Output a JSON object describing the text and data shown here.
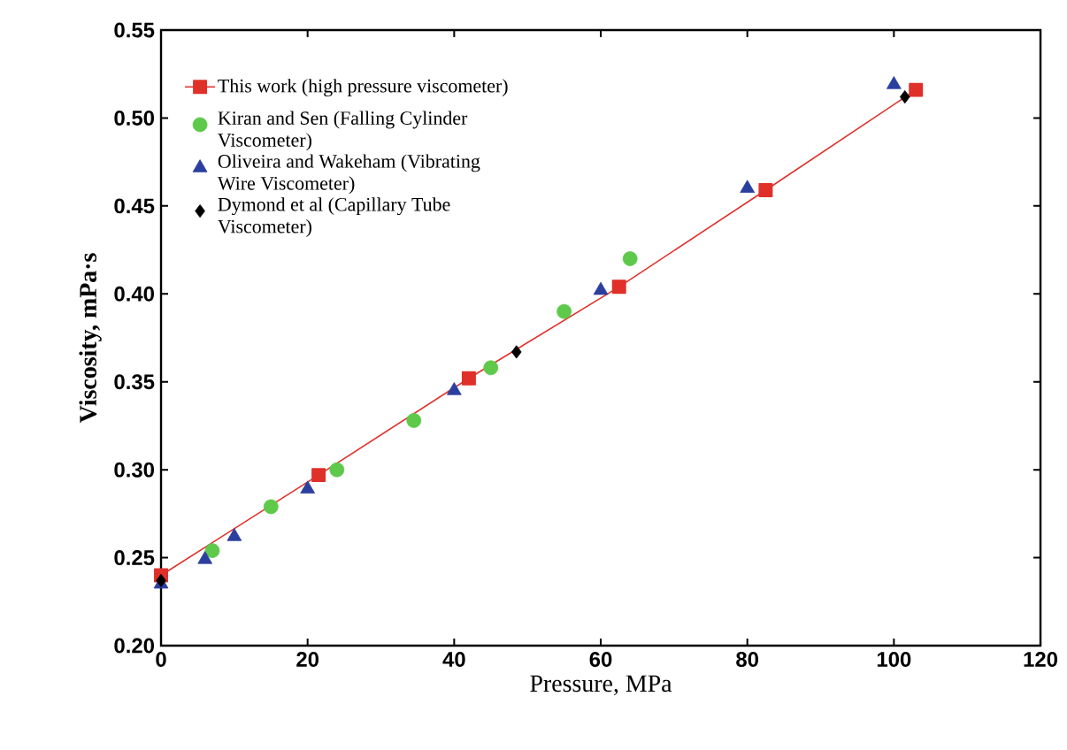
{
  "chart_data": {
    "type": "scatter",
    "xlabel": "Pressure, MPa",
    "ylabel": "Viscosity, mPa·s",
    "xlim": [
      0,
      120
    ],
    "ylim": [
      0.2,
      0.55
    ],
    "xticks": [
      0,
      20,
      40,
      60,
      80,
      100,
      120
    ],
    "yticks": [
      {
        "value": 0.2,
        "label": "0.20"
      },
      {
        "value": 0.25,
        "label": "0.25"
      },
      {
        "value": 0.3,
        "label": "0.30"
      },
      {
        "value": 0.35,
        "label": "0.35"
      },
      {
        "value": 0.4,
        "label": "0.40"
      },
      {
        "value": 0.45,
        "label": "0.45"
      },
      {
        "value": 0.5,
        "label": "0.50"
      },
      {
        "value": 0.55,
        "label": "0.55"
      }
    ],
    "legend": "top left",
    "grid": false,
    "series": [
      {
        "name": "This work (high pressure viscometer)",
        "type": "line",
        "marker": "square",
        "color": "#e0302a",
        "x": [
          0,
          21.5,
          42,
          62.5,
          82.5,
          103
        ],
        "values": [
          0.24,
          0.297,
          0.352,
          0.404,
          0.459,
          0.516
        ]
      },
      {
        "name": "Kiran and Sen (Falling Cylinder Viscometer)",
        "marker": "circle",
        "color": "#5ec94a",
        "x": [
          7,
          15,
          24,
          34.5,
          45,
          55,
          64
        ],
        "values": [
          0.254,
          0.279,
          0.3,
          0.328,
          0.358,
          0.39,
          0.42
        ]
      },
      {
        "name": "Oliveira and Wakeham (Vibrating Wire Viscometer)",
        "marker": "triangle",
        "color": "#2b3f9e",
        "x": [
          0,
          6,
          10,
          20,
          40,
          60,
          80,
          100
        ],
        "values": [
          0.235,
          0.249,
          0.262,
          0.289,
          0.345,
          0.402,
          0.46,
          0.519
        ]
      },
      {
        "name": "Dymond et al (Capillary Tube Viscometer)",
        "marker": "diamond",
        "color": "#000000",
        "x": [
          0,
          48.5,
          101.5
        ],
        "values": [
          0.237,
          0.367,
          0.512
        ]
      }
    ]
  }
}
